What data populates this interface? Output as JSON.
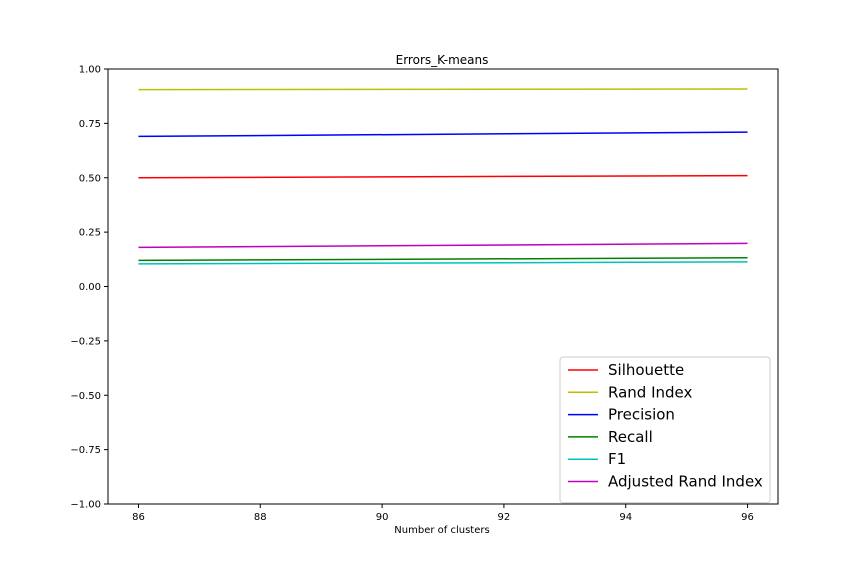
{
  "chart_data": {
    "type": "line",
    "title": "Errors_K-means",
    "xlabel": "Number of clusters",
    "ylabel": "",
    "xlim": [
      85.5,
      96.5
    ],
    "ylim": [
      -1.0,
      1.0
    ],
    "xticks": [
      86,
      88,
      90,
      92,
      94,
      96
    ],
    "xtick_labels": [
      "86",
      "88",
      "90",
      "92",
      "94",
      "96"
    ],
    "yticks": [
      -1.0,
      -0.75,
      -0.5,
      -0.25,
      0.0,
      0.25,
      0.5,
      0.75,
      1.0
    ],
    "ytick_labels": [
      "−1.00",
      "−0.75",
      "−0.50",
      "−0.25",
      "0.00",
      "0.25",
      "0.50",
      "0.75",
      "1.00"
    ],
    "grid": false,
    "legend_position": "lower-right",
    "series": [
      {
        "name": "Silhouette",
        "color": "#ff0000",
        "x": [
          86,
          96
        ],
        "y": [
          0.5,
          0.51
        ]
      },
      {
        "name": "Rand Index",
        "color": "#bfbf00",
        "x": [
          86,
          96
        ],
        "y": [
          0.905,
          0.908
        ]
      },
      {
        "name": "Precision",
        "color": "#0000ff",
        "x": [
          86,
          96
        ],
        "y": [
          0.69,
          0.71
        ]
      },
      {
        "name": "Recall",
        "color": "#008000",
        "x": [
          86,
          96
        ],
        "y": [
          0.12,
          0.132
        ]
      },
      {
        "name": "F1",
        "color": "#00bfbf",
        "x": [
          86,
          96
        ],
        "y": [
          0.104,
          0.113
        ]
      },
      {
        "name": "Adjusted Rand Index",
        "color": "#bf00bf",
        "x": [
          86,
          96
        ],
        "y": [
          0.18,
          0.198
        ]
      }
    ]
  }
}
